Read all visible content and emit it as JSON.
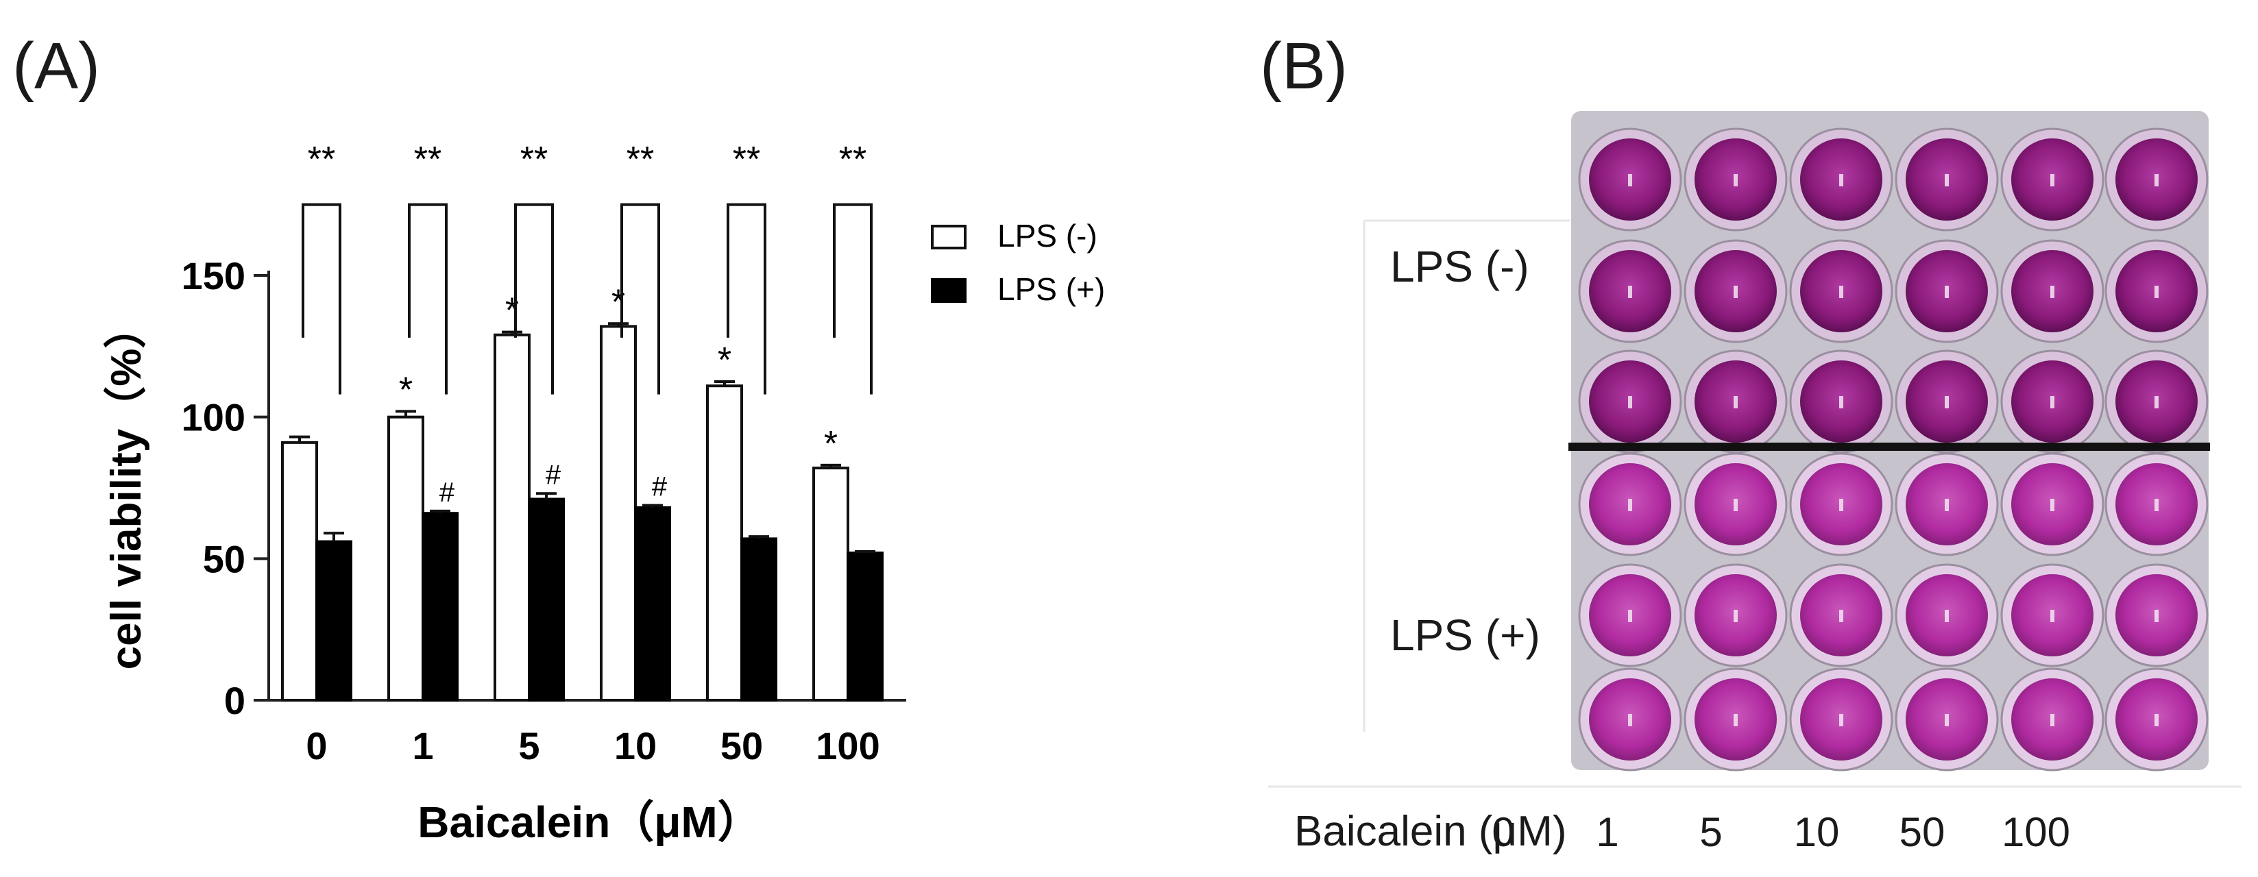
{
  "panel_a": {
    "label": "(A)",
    "legend": {
      "placement": "top-right"
    }
  },
  "panel_b": {
    "label": "(B)",
    "row_labels": [
      "LPS (-)",
      "LPS (+)"
    ],
    "xlabel": "Baicalein (μM)",
    "doses": [
      "0",
      "1",
      "5",
      "10",
      "50",
      "100"
    ],
    "wells": {
      "columns": 6,
      "rows_per_group": 3,
      "groups": [
        {
          "name": "LPS (-)",
          "well_color": "#8a1a7a",
          "rim_color": "#d9c3dc"
        },
        {
          "name": "LPS (+)",
          "well_color": "#b02aa0",
          "rim_color": "#e3cde6"
        }
      ],
      "plate_color": "#c7c3cc",
      "separator_color": "#111111"
    }
  },
  "chart_data": {
    "type": "bar",
    "categories": [
      "0",
      "1",
      "5",
      "10",
      "50",
      "100"
    ],
    "xlabel": "Baicalein（μM）",
    "ylabel": "cell viability（%）",
    "ylim": [
      0,
      175
    ],
    "yticks": [
      "0",
      "50",
      "100",
      "150"
    ],
    "grid": false,
    "legend_placement": "top-right",
    "series": [
      {
        "name": "LPS (-)",
        "values": [
          91,
          100,
          129,
          132,
          111,
          82
        ],
        "errors": [
          2,
          2,
          1,
          1,
          1.5,
          1
        ],
        "marks": [
          "",
          "*",
          "*",
          "*",
          "*",
          "*"
        ],
        "fill": "#ffffff",
        "stroke": "#111111"
      },
      {
        "name": "LPS (+)",
        "values": [
          56,
          66,
          71,
          68,
          57,
          52
        ],
        "errors": [
          3,
          0.8,
          2,
          0.8,
          0.8,
          0.5
        ],
        "marks": [
          "",
          "#",
          "#",
          "#",
          "",
          ""
        ],
        "fill": "#000000",
        "stroke": "#000000"
      }
    ],
    "pair_marks": [
      "**",
      "**",
      "**",
      "**",
      "**",
      "**"
    ]
  }
}
